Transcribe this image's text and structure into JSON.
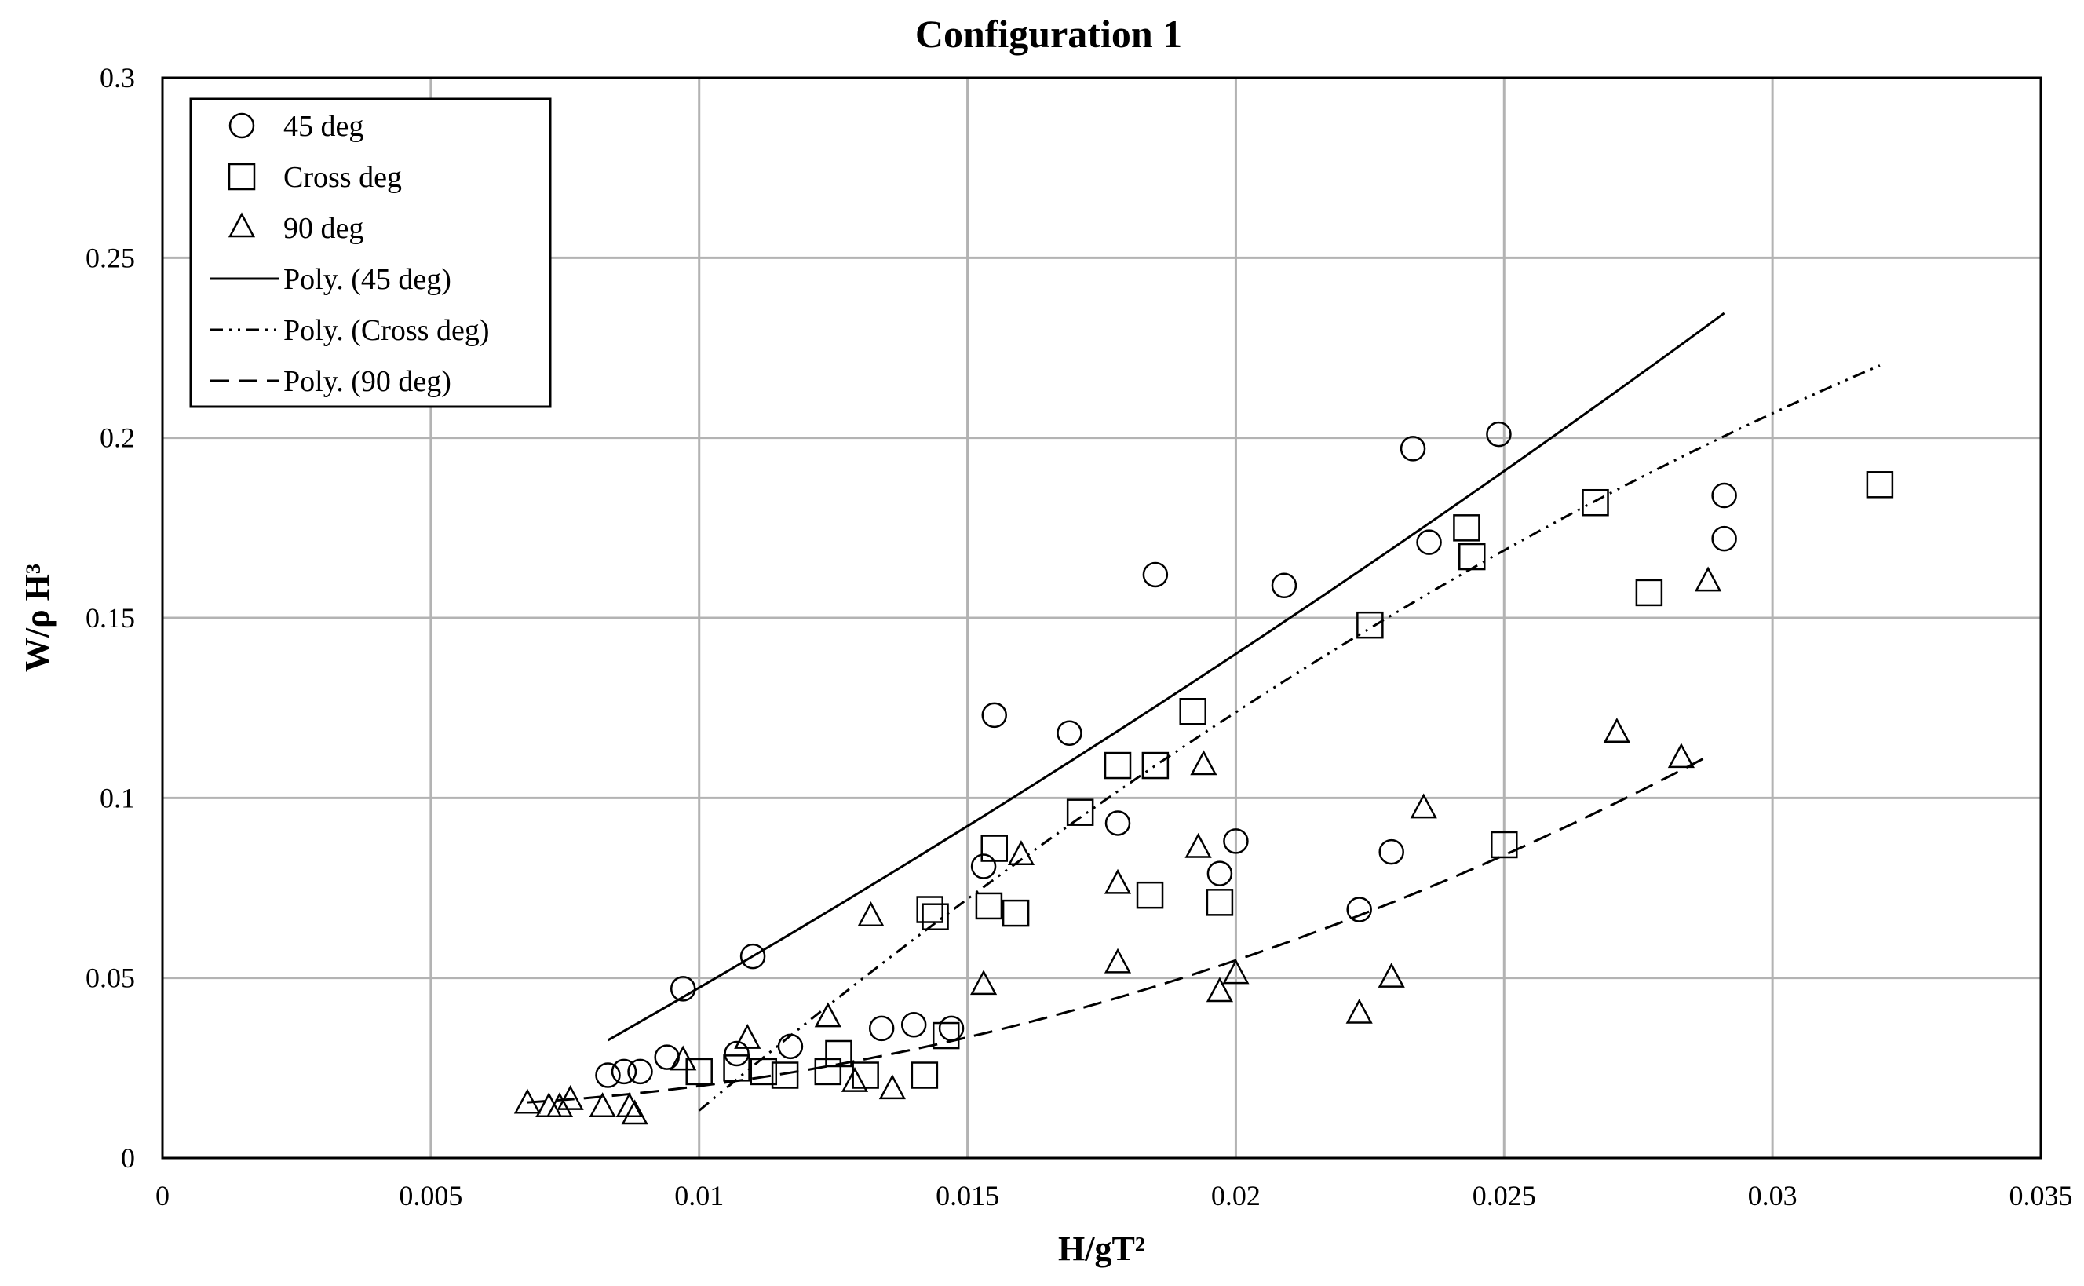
{
  "chart_data": {
    "type": "scatter",
    "title": "Configuration 1",
    "xlabel": "H/gT²",
    "ylabel": "W/ρ H³",
    "xlim": [
      0,
      0.035
    ],
    "ylim": [
      0,
      0.3
    ],
    "x_ticks": [
      "0",
      "0.005",
      "0.01",
      "0.015",
      "0.02",
      "0.025",
      "0.03",
      "0.035"
    ],
    "y_ticks": [
      "0",
      "0.05",
      "0.1",
      "0.15",
      "0.2",
      "0.25",
      "0.3"
    ],
    "grid": true,
    "legend_position": "top-left",
    "series": [
      {
        "name": "45 deg",
        "marker": "circle",
        "points": [
          [
            0.0083,
            0.023
          ],
          [
            0.0086,
            0.024
          ],
          [
            0.0089,
            0.024
          ],
          [
            0.0094,
            0.028
          ],
          [
            0.0097,
            0.047
          ],
          [
            0.0107,
            0.029
          ],
          [
            0.011,
            0.056
          ],
          [
            0.0117,
            0.031
          ],
          [
            0.0134,
            0.036
          ],
          [
            0.014,
            0.037
          ],
          [
            0.0147,
            0.036
          ],
          [
            0.0153,
            0.081
          ],
          [
            0.0155,
            0.123
          ],
          [
            0.0169,
            0.118
          ],
          [
            0.0178,
            0.093
          ],
          [
            0.0185,
            0.162
          ],
          [
            0.0197,
            0.079
          ],
          [
            0.02,
            0.088
          ],
          [
            0.0209,
            0.159
          ],
          [
            0.0223,
            0.069
          ],
          [
            0.0229,
            0.085
          ],
          [
            0.0233,
            0.197
          ],
          [
            0.0236,
            0.171
          ],
          [
            0.0249,
            0.201
          ],
          [
            0.0291,
            0.172
          ],
          [
            0.0291,
            0.184
          ]
        ]
      },
      {
        "name": "Cross deg",
        "marker": "square",
        "points": [
          [
            0.01,
            0.024
          ],
          [
            0.0107,
            0.025
          ],
          [
            0.0112,
            0.024
          ],
          [
            0.0116,
            0.023
          ],
          [
            0.0124,
            0.024
          ],
          [
            0.0126,
            0.029
          ],
          [
            0.0131,
            0.023
          ],
          [
            0.0142,
            0.023
          ],
          [
            0.0143,
            0.069
          ],
          [
            0.0144,
            0.067
          ],
          [
            0.0146,
            0.034
          ],
          [
            0.0154,
            0.07
          ],
          [
            0.0155,
            0.086
          ],
          [
            0.0159,
            0.068
          ],
          [
            0.0171,
            0.096
          ],
          [
            0.0178,
            0.109
          ],
          [
            0.0184,
            0.073
          ],
          [
            0.0185,
            0.109
          ],
          [
            0.0192,
            0.124
          ],
          [
            0.0197,
            0.071
          ],
          [
            0.0225,
            0.148
          ],
          [
            0.0243,
            0.175
          ],
          [
            0.0244,
            0.167
          ],
          [
            0.025,
            0.087
          ],
          [
            0.0267,
            0.182
          ],
          [
            0.0277,
            0.157
          ],
          [
            0.032,
            0.187
          ]
        ]
      },
      {
        "name": "90 deg",
        "marker": "triangle",
        "points": [
          [
            0.0068,
            0.015
          ],
          [
            0.0072,
            0.014
          ],
          [
            0.0074,
            0.014
          ],
          [
            0.0076,
            0.016
          ],
          [
            0.0082,
            0.014
          ],
          [
            0.0087,
            0.014
          ],
          [
            0.0088,
            0.012
          ],
          [
            0.0097,
            0.027
          ],
          [
            0.0109,
            0.033
          ],
          [
            0.0124,
            0.039
          ],
          [
            0.0129,
            0.021
          ],
          [
            0.0132,
            0.067
          ],
          [
            0.0136,
            0.019
          ],
          [
            0.0153,
            0.048
          ],
          [
            0.016,
            0.084
          ],
          [
            0.0178,
            0.076
          ],
          [
            0.0178,
            0.054
          ],
          [
            0.0193,
            0.086
          ],
          [
            0.0194,
            0.109
          ],
          [
            0.0197,
            0.046
          ],
          [
            0.02,
            0.051
          ],
          [
            0.0223,
            0.04
          ],
          [
            0.0229,
            0.05
          ],
          [
            0.0235,
            0.097
          ],
          [
            0.0271,
            0.118
          ],
          [
            0.0283,
            0.111
          ],
          [
            0.0288,
            0.16
          ]
        ]
      }
    ],
    "trendlines": [
      {
        "name": "Poly. (45 deg)",
        "style": "solid",
        "x_range": [
          0.0083,
          0.0291
        ],
        "coeffs": [
          -0.0336,
          7.5,
          59
        ]
      },
      {
        "name": "Poly. (Cross deg)",
        "style": "dash-dot-dot",
        "x_range": [
          0.01,
          0.032
        ],
        "coeffs": [
          -0.125,
          15.2,
          -138
        ]
      },
      {
        "name": "Poly. (90 deg)",
        "style": "dashed",
        "x_range": [
          0.0068,
          0.0288
        ],
        "coeffs": [
          0.0165,
          -1.22,
          157
        ]
      }
    ]
  }
}
